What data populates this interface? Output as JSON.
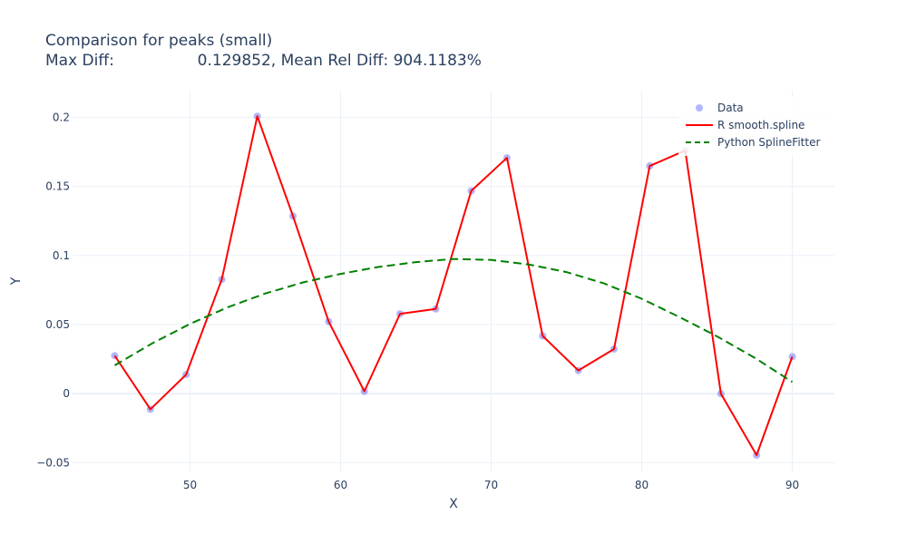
{
  "chart_data": {
    "type": "scatter",
    "title_line1": "Comparison for peaks (small)",
    "title_line2": "Max Diff:                 0.129852, Mean Rel Diff: 904.1183%",
    "xlabel": "X",
    "ylabel": "Y",
    "xlim": [
      42.2,
      92.8
    ],
    "ylim": [
      -0.0563,
      0.2193
    ],
    "xticks": [
      50,
      60,
      70,
      80,
      90
    ],
    "xtick_labels": [
      "50",
      "60",
      "70",
      "80",
      "90"
    ],
    "yticks": [
      -0.05,
      0,
      0.05,
      0.1,
      0.15,
      0.2
    ],
    "ytick_labels": [
      "−0.05",
      "0",
      "0.05",
      "0.1",
      "0.15",
      "0.2"
    ],
    "grid": true,
    "legend_position": "top-right",
    "series": [
      {
        "name": "Data",
        "mode": "markers",
        "color": "#636efa",
        "x": [
          45,
          47.37,
          49.74,
          52.11,
          54.47,
          56.84,
          59.21,
          61.58,
          63.95,
          66.32,
          68.68,
          71.05,
          73.42,
          75.79,
          78.16,
          80.53,
          82.89,
          85.26,
          87.63,
          90
        ],
        "y": [
          0.0275,
          -0.0113,
          0.0138,
          0.0827,
          0.2008,
          0.1285,
          0.0522,
          0.0017,
          0.0578,
          0.0613,
          0.1468,
          0.1707,
          0.0418,
          0.0168,
          0.0323,
          0.1648,
          0.176,
          0,
          -0.0445,
          0.0268
        ]
      },
      {
        "name": "R smooth.spline",
        "mode": "lines",
        "color": "#ff0000",
        "x": [
          45,
          47.37,
          49.74,
          52.11,
          54.47,
          56.84,
          59.21,
          61.58,
          63.95,
          66.32,
          68.68,
          71.05,
          73.42,
          75.79,
          78.16,
          80.53,
          82.89,
          85.26,
          87.63,
          90
        ],
        "y": [
          0.0275,
          -0.0113,
          0.0138,
          0.0827,
          0.2008,
          0.1285,
          0.0522,
          0.0017,
          0.0578,
          0.0613,
          0.1468,
          0.1707,
          0.0418,
          0.0168,
          0.0323,
          0.1648,
          0.176,
          0,
          -0.0445,
          0.0268
        ]
      },
      {
        "name": "Python SplineFitter",
        "mode": "lines",
        "dash": "dash",
        "color": "#008000",
        "x": [
          45,
          47.5,
          50,
          52.5,
          55,
          57.5,
          60,
          62.5,
          65,
          67.5,
          70,
          72.5,
          75,
          77.5,
          80,
          82.5,
          85,
          87.5,
          90
        ],
        "y": [
          0.0205,
          0.0365,
          0.0505,
          0.0625,
          0.0725,
          0.0805,
          0.0867,
          0.0917,
          0.0952,
          0.0975,
          0.0968,
          0.0935,
          0.088,
          0.0798,
          0.0687,
          0.0555,
          0.0415,
          0.026,
          0.0085
        ]
      }
    ]
  }
}
